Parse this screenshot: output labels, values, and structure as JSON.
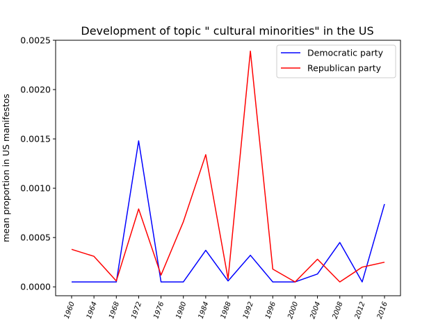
{
  "chart_data": {
    "type": "line",
    "title": "Development of topic \" cultural minorities\" in the US",
    "xlabel": "",
    "ylabel": "mean proportion in US manifestos",
    "x": [
      "1960",
      "1964",
      "1968",
      "1972",
      "1976",
      "1980",
      "1984",
      "1988",
      "1992",
      "1996",
      "2000",
      "2004",
      "2008",
      "2012",
      "2016"
    ],
    "ylim": [
      -9e-05,
      0.0025
    ],
    "yticks": [
      0.0,
      0.0005,
      0.001,
      0.0015,
      0.002,
      0.0025
    ],
    "ytick_labels": [
      "0.0000",
      "0.0005",
      "0.0010",
      "0.0015",
      "0.0020",
      "0.0025"
    ],
    "grid": false,
    "legend_position": "top-right",
    "series": [
      {
        "name": "Democratic party",
        "color": "#0000ff",
        "values": [
          5e-05,
          5e-05,
          5e-05,
          0.00148,
          5e-05,
          5e-05,
          0.00037,
          6e-05,
          0.00032,
          5e-05,
          5e-05,
          0.00013,
          0.00045,
          5e-05,
          0.00084
        ]
      },
      {
        "name": "Republican party",
        "color": "#ff0000",
        "values": [
          0.00038,
          0.00031,
          6e-05,
          0.00079,
          0.00012,
          0.00066,
          0.00134,
          8e-05,
          0.00239,
          0.00018,
          5e-05,
          0.00028,
          5e-05,
          0.0002,
          0.00025
        ]
      }
    ]
  }
}
